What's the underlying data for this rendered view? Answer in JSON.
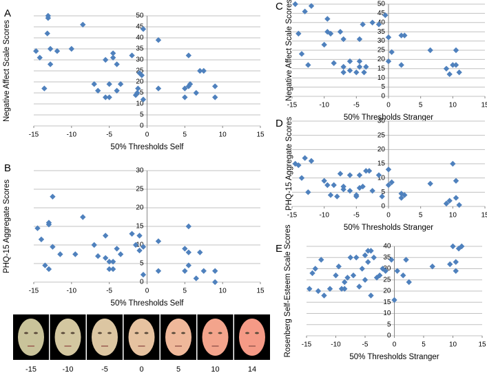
{
  "chart_data": [
    {
      "type": "scatter",
      "panel": "A",
      "x_label": "50% Thresholds Self",
      "y_label": "Negative Affect Scale Scores",
      "color": "#4f81bd",
      "grid": true,
      "xlim": [
        -15,
        15
      ],
      "ylim": [
        0,
        50
      ],
      "xticks": [
        -15,
        -10,
        -5,
        0,
        5,
        10,
        15
      ],
      "yticks": [
        0,
        5,
        10,
        15,
        20,
        25,
        30,
        35,
        40,
        45,
        50
      ],
      "x": [
        -13.1,
        -13.1,
        -13.2,
        -12.8,
        -14.7,
        -11.9,
        -10,
        -8.5,
        -14.2,
        -12.8,
        -13.6,
        -7,
        -6.5,
        -5.5,
        -5,
        -5.5,
        -4.5,
        -4.5,
        -4,
        -5,
        -4,
        -3.5,
        -2,
        -1.5,
        -1.3,
        -1.2,
        -1,
        -0.7,
        -0.5,
        -0.5,
        1.5,
        1.5,
        5,
        5,
        5.5,
        5.5,
        5.7,
        6.5,
        7,
        7.5,
        9,
        9
      ],
      "y": [
        50,
        49,
        42,
        35,
        34,
        34,
        35,
        46,
        31,
        28,
        17,
        19,
        16,
        13,
        13,
        30,
        33,
        31,
        28,
        19,
        16,
        19,
        32,
        14,
        15,
        17,
        24,
        23,
        44,
        12,
        39,
        17,
        13,
        17,
        32,
        18,
        19,
        15,
        25,
        25,
        18,
        13
      ]
    },
    {
      "type": "scatter",
      "panel": "B",
      "x_label": "50% Thresholds Self",
      "y_label": "PHQ-15 Aggregate Scores",
      "color": "#4f81bd",
      "grid": true,
      "xlim": [
        -15,
        15
      ],
      "ylim": [
        0,
        30
      ],
      "xticks": [
        -15,
        -10,
        -5,
        0,
        5,
        10,
        15
      ],
      "yticks": [
        0,
        5,
        10,
        15,
        20,
        25,
        30
      ],
      "x": [
        -14.5,
        -14,
        -13.5,
        -13,
        -13,
        -13,
        -12.5,
        -12.5,
        -11.5,
        -9.5,
        -8.5,
        -7,
        -6.5,
        -5.5,
        -5.5,
        -5,
        -5,
        -4.5,
        -4.5,
        -4,
        -3.5,
        -2,
        -1.5,
        -1,
        -1,
        -0.5,
        -0.5,
        1.5,
        1.5,
        5,
        5,
        5.5,
        5.5,
        5.5,
        6.5,
        7,
        7.5,
        9,
        9
      ],
      "y": [
        14.5,
        11.5,
        4.5,
        3.5,
        15.5,
        16,
        23,
        9.5,
        7.5,
        7.5,
        17.5,
        10,
        7,
        12.5,
        6.5,
        5.5,
        3.5,
        3.5,
        5.5,
        9,
        7.5,
        13,
        10,
        12.5,
        8.5,
        9.5,
        2,
        11,
        3,
        9,
        3,
        15,
        8,
        4.5,
        1,
        8,
        3,
        3,
        0
      ]
    },
    {
      "type": "scatter",
      "panel": "C",
      "x_label": "50% Thresholds Stranger",
      "y_label": "Negative Affect Scale Scores",
      "color": "#4f81bd",
      "grid": true,
      "xlim": [
        -15,
        15
      ],
      "ylim": [
        0,
        50
      ],
      "xticks": [
        -15,
        -10,
        -5,
        0,
        5,
        10,
        15
      ],
      "yticks": [
        0,
        5,
        10,
        15,
        20,
        25,
        30,
        35,
        40,
        45,
        50
      ],
      "x": [
        -14.5,
        -14,
        -13.5,
        -13,
        -12.5,
        -12,
        -10,
        -9.5,
        -9.5,
        -9,
        -8.5,
        -7.5,
        -7,
        -7,
        -7,
        -6,
        -6,
        -5,
        -4.5,
        -4.5,
        -4.5,
        -4,
        -3.8,
        -3.5,
        -2.5,
        -1.5,
        -0.5,
        0,
        0,
        0.5,
        2,
        2,
        2.5,
        6.5,
        9,
        9.5,
        10,
        10.5,
        10.5,
        11
      ],
      "y": [
        50,
        34,
        23,
        46,
        17,
        49,
        28,
        42,
        35,
        34,
        18,
        35,
        31,
        16,
        13,
        19,
        14,
        13,
        31,
        16,
        19,
        39,
        13,
        16,
        40,
        39,
        44,
        32,
        19,
        24,
        33,
        17,
        33,
        25,
        15,
        12,
        17,
        25,
        17,
        13
      ]
    },
    {
      "type": "scatter",
      "panel": "D",
      "x_label": "50% Thresholds Stranger",
      "y_label": "PHQ-15 Aggregate Scores",
      "color": "#4f81bd",
      "grid": true,
      "xlim": [
        -15,
        15
      ],
      "ylim": [
        0,
        30
      ],
      "xticks": [
        -15,
        -10,
        -5,
        0,
        5,
        10,
        15
      ],
      "yticks": [
        0,
        5,
        10,
        15,
        20,
        25,
        30
      ],
      "x": [
        -14.5,
        -14,
        -13.5,
        -13,
        -12.5,
        -12,
        -10,
        -9.5,
        -9,
        -8.5,
        -8,
        -7.5,
        -7,
        -7,
        -6,
        -6,
        -5,
        -5,
        -4.5,
        -4.5,
        -4,
        -3.5,
        -3,
        -2.5,
        -1.5,
        -1,
        0,
        0,
        0.5,
        2,
        2,
        2.5,
        6.5,
        9,
        9.5,
        10,
        10.5,
        10.5,
        11
      ],
      "y": [
        15,
        14.5,
        10,
        17,
        5,
        16,
        9,
        7.5,
        4,
        7.5,
        3.5,
        11.5,
        6,
        7,
        5.5,
        11,
        3.5,
        4,
        11,
        6.5,
        7,
        12.5,
        12.5,
        5.5,
        11,
        3.5,
        13,
        7.5,
        8.5,
        4.5,
        3,
        4,
        8,
        1,
        2,
        15,
        9,
        3,
        0.5
      ]
    },
    {
      "type": "scatter",
      "panel": "E",
      "x_label": "50% Thresholds Stranger",
      "y_label": "Rosenberg Self-Esteem Scale Scores",
      "color": "#4f81bd",
      "grid": true,
      "xlim": [
        -15,
        15
      ],
      "ylim": [
        0,
        40
      ],
      "xticks": [
        -15,
        -10,
        -5,
        0,
        5,
        10,
        15
      ],
      "yticks": [
        0,
        5,
        10,
        15,
        20,
        25,
        30,
        35,
        40
      ],
      "x": [
        -14.5,
        -14,
        -13.5,
        -13,
        -12.5,
        -12,
        -11,
        -10,
        -9.5,
        -9,
        -8.5,
        -8.5,
        -8,
        -7.5,
        -7,
        -6.5,
        -6,
        -5.5,
        -5,
        -5,
        -4.5,
        -4.5,
        -4,
        -4,
        -3.5,
        -3,
        -2.5,
        -2,
        -1.5,
        -0.5,
        0,
        0.5,
        1.5,
        2,
        2.5,
        6.5,
        9.5,
        10,
        10.5,
        10.5,
        11,
        11.5
      ],
      "y": [
        21,
        28,
        30,
        20,
        34,
        18,
        21,
        27,
        31,
        21,
        21,
        24,
        26,
        35,
        27,
        35,
        22,
        30,
        36,
        25,
        38,
        33,
        18,
        38,
        35,
        26,
        27,
        30,
        29,
        34,
        16,
        29,
        27,
        34,
        24,
        31,
        32,
        40,
        29,
        33,
        39,
        40
      ]
    }
  ],
  "faces": {
    "labels": [
      -15,
      -10,
      -5,
      0,
      5,
      10,
      14
    ]
  }
}
